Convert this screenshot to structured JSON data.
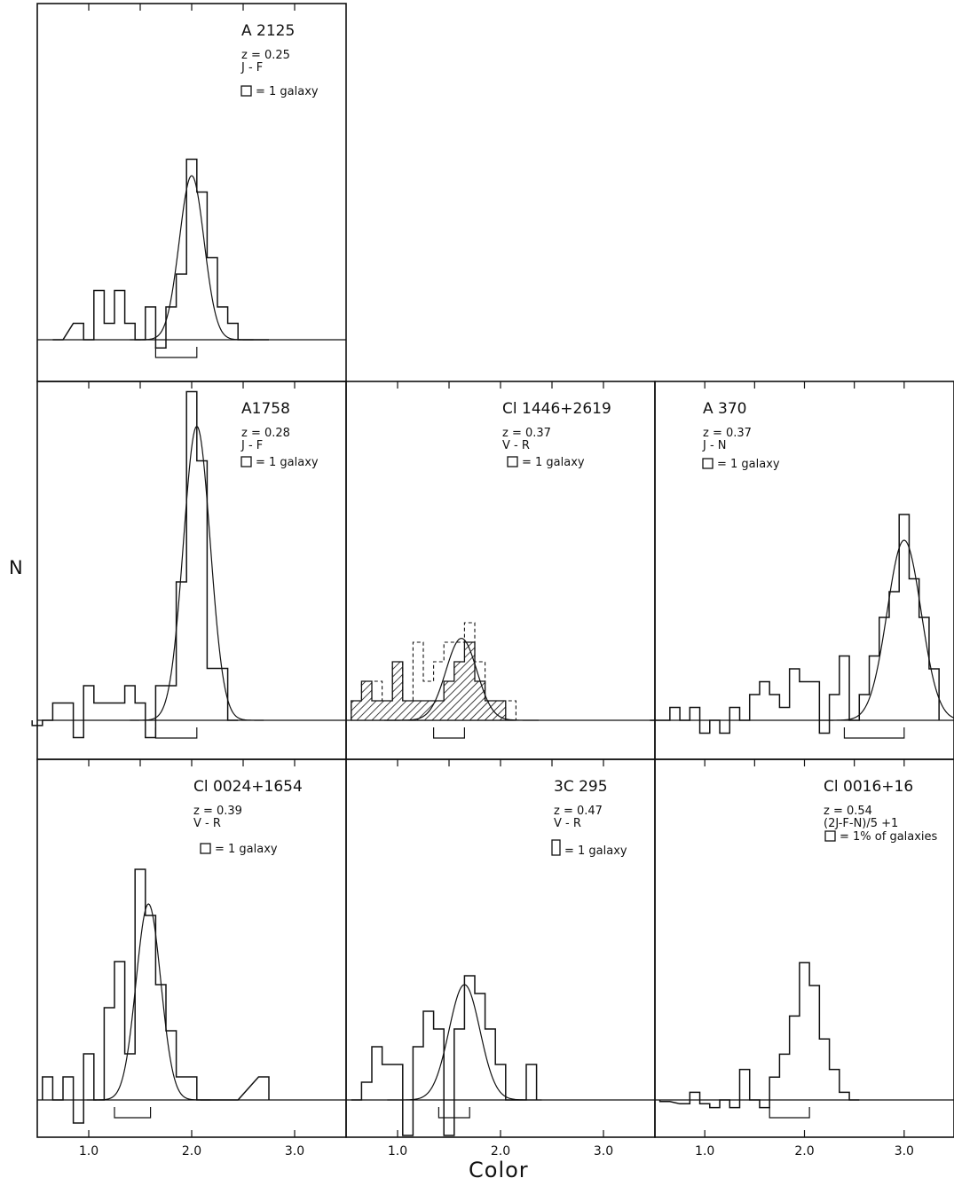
{
  "ylabel": "N",
  "xlabel": "Color",
  "x_tick_labels": [
    "1.0",
    "2.0",
    "3.0"
  ],
  "chart_data": [
    {
      "type": "histogram",
      "name": "A 2125",
      "lines": [
        "A 2125",
        "z = 0.25",
        "J - F"
      ],
      "legend": "= 1 galaxy",
      "xlim": [
        0.5,
        3.5
      ],
      "bin_width": 0.1,
      "bins_x": [
        0.7,
        0.9,
        1.0,
        1.1,
        1.2,
        1.3,
        1.4,
        1.5,
        1.6,
        1.7,
        1.8,
        1.9,
        2.0,
        2.1,
        2.2,
        2.3,
        2.4,
        2.5,
        2.7
      ],
      "counts": [
        0,
        1,
        0,
        3,
        1,
        3,
        1,
        0,
        2,
        -0.5,
        2,
        4,
        11,
        9,
        5,
        2,
        1,
        0,
        0
      ],
      "gaussian": {
        "mu": 2.0,
        "sigma": 0.12,
        "amp": 10
      },
      "bracket": [
        1.65,
        2.05
      ]
    },
    {
      "type": "histogram",
      "name": "A1758",
      "lines": [
        "A1758",
        "z = 0.28",
        "J - F"
      ],
      "legend": "= 1 galaxy",
      "xlim": [
        0.5,
        3.5
      ],
      "bin_width": 0.1,
      "bins_x": [
        0.5,
        0.6,
        0.7,
        0.8,
        0.9,
        1.0,
        1.1,
        1.2,
        1.3,
        1.4,
        1.5,
        1.6,
        1.7,
        1.8,
        1.9,
        2.0,
        2.1,
        2.2,
        2.3,
        2.4
      ],
      "counts": [
        -0.3,
        0,
        1,
        1,
        -1,
        2,
        1,
        1,
        1,
        2,
        1,
        -1,
        2,
        2,
        8,
        19,
        15,
        3,
        3,
        0
      ],
      "gaussian": {
        "mu": 2.05,
        "sigma": 0.13,
        "amp": 17
      },
      "bracket": [
        1.65,
        2.05
      ]
    },
    {
      "type": "histogram",
      "name": "Cl 1446+2619",
      "lines": [
        "Cl 1446+2619",
        "z = 0.37",
        "V - R"
      ],
      "legend": "= 1 galaxy",
      "xlim": [
        0.5,
        3.5
      ],
      "bin_width": 0.1,
      "bins_x": [
        0.6,
        0.7,
        0.8,
        0.9,
        1.0,
        1.1,
        1.2,
        1.3,
        1.4,
        1.5,
        1.6,
        1.7,
        1.8,
        1.9,
        2.0,
        2.1
      ],
      "counts_total": [
        1,
        2,
        2,
        1,
        3,
        1,
        4,
        2,
        3,
        4,
        4,
        5,
        3,
        1,
        1,
        1
      ],
      "counts_dashed": [
        1,
        2,
        2,
        1,
        3,
        1,
        4,
        2,
        3,
        4,
        4,
        5,
        3,
        1,
        1,
        1
      ],
      "counts_shaded": [
        1,
        2,
        1,
        1,
        3,
        1,
        1,
        1,
        1,
        2,
        3,
        4,
        2,
        1,
        1,
        0
      ],
      "gaussian": {
        "mu": 1.62,
        "sigma": 0.15,
        "amp": 4.2
      },
      "bracket": [
        1.35,
        1.65
      ]
    },
    {
      "type": "histogram",
      "name": "A 370",
      "lines": [
        "A 370",
        "z = 0.37",
        "J - N"
      ],
      "legend": "= 1 galaxy",
      "xlim": [
        0.5,
        3.5
      ],
      "bin_width": 0.1,
      "bins_x": [
        0.5,
        0.6,
        0.7,
        0.8,
        0.9,
        1.0,
        1.1,
        1.2,
        1.3,
        1.4,
        1.5,
        1.6,
        1.7,
        1.8,
        1.9,
        2.0,
        2.1,
        2.2,
        2.3,
        2.4,
        2.5,
        2.6,
        2.7,
        2.8,
        2.9,
        3.0,
        3.1,
        3.2,
        3.3
      ],
      "counts": [
        0,
        0,
        1,
        0,
        1,
        -1,
        0,
        -1,
        1,
        0,
        2,
        3,
        2,
        1,
        4,
        3,
        3,
        -1,
        2,
        5,
        0,
        2,
        5,
        8,
        10,
        16,
        11,
        8,
        4
      ],
      "gaussian": {
        "mu": 3.0,
        "sigma": 0.17,
        "amp": 14
      },
      "bracket": [
        2.4,
        3.0
      ]
    },
    {
      "type": "histogram",
      "name": "Cl 0024+1654",
      "lines": [
        "Cl 0024+1654",
        "z = 0.39",
        "V - R"
      ],
      "legend": "= 1 galaxy",
      "xlim": [
        0.5,
        3.5
      ],
      "bin_width": 0.1,
      "bins_x": [
        0.6,
        0.7,
        0.8,
        0.9,
        1.0,
        1.1,
        1.2,
        1.3,
        1.4,
        1.5,
        1.6,
        1.7,
        1.8,
        1.9,
        2.0,
        2.1,
        2.3,
        2.4,
        2.7
      ],
      "counts": [
        1,
        0,
        1,
        -1,
        2,
        0,
        4,
        6,
        2,
        10,
        8,
        5,
        3,
        1,
        1,
        0,
        0,
        0,
        1
      ],
      "gaussian": {
        "mu": 1.58,
        "sigma": 0.12,
        "amp": 8.5
      },
      "bracket": [
        1.25,
        1.6
      ]
    },
    {
      "type": "histogram",
      "name": "3C 295",
      "lines": [
        "3C 295",
        "z = 0.47",
        "V - R"
      ],
      "legend": "= 1 galaxy",
      "xlim": [
        0.5,
        3.5
      ],
      "bin_width": 0.1,
      "bins_x": [
        0.6,
        0.7,
        0.8,
        0.9,
        1.0,
        1.1,
        1.2,
        1.3,
        1.4,
        1.5,
        1.6,
        1.7,
        1.8,
        1.9,
        2.0,
        2.1,
        2.2,
        2.3
      ],
      "counts": [
        0,
        1,
        3,
        2,
        2,
        -2,
        3,
        5,
        4,
        -2,
        4,
        7,
        6,
        4,
        2,
        0,
        0,
        2
      ],
      "gaussian": {
        "mu": 1.65,
        "sigma": 0.15,
        "amp": 6.5
      },
      "bracket": [
        1.4,
        1.7
      ]
    },
    {
      "type": "histogram",
      "name": "Cl 0016+16",
      "lines": [
        "Cl 0016+16",
        "z = 0.54",
        "(2J-F-N)/5 +1"
      ],
      "legend": "= 1% of galaxies",
      "xlim": [
        0.5,
        3.5
      ],
      "bin_width": 0.1,
      "bins_x": [
        0.6,
        0.8,
        0.9,
        1.0,
        1.1,
        1.2,
        1.3,
        1.4,
        1.5,
        1.6,
        1.7,
        1.8,
        1.9,
        2.0,
        2.1,
        2.2,
        2.3,
        2.4,
        2.5
      ],
      "counts": [
        -0.2,
        -0.5,
        1,
        -0.5,
        -1,
        0,
        -1,
        4,
        0,
        -1,
        3,
        6,
        11,
        18,
        15,
        8,
        4,
        1,
        0
      ],
      "bracket": [
        1.65,
        2.05
      ]
    }
  ]
}
